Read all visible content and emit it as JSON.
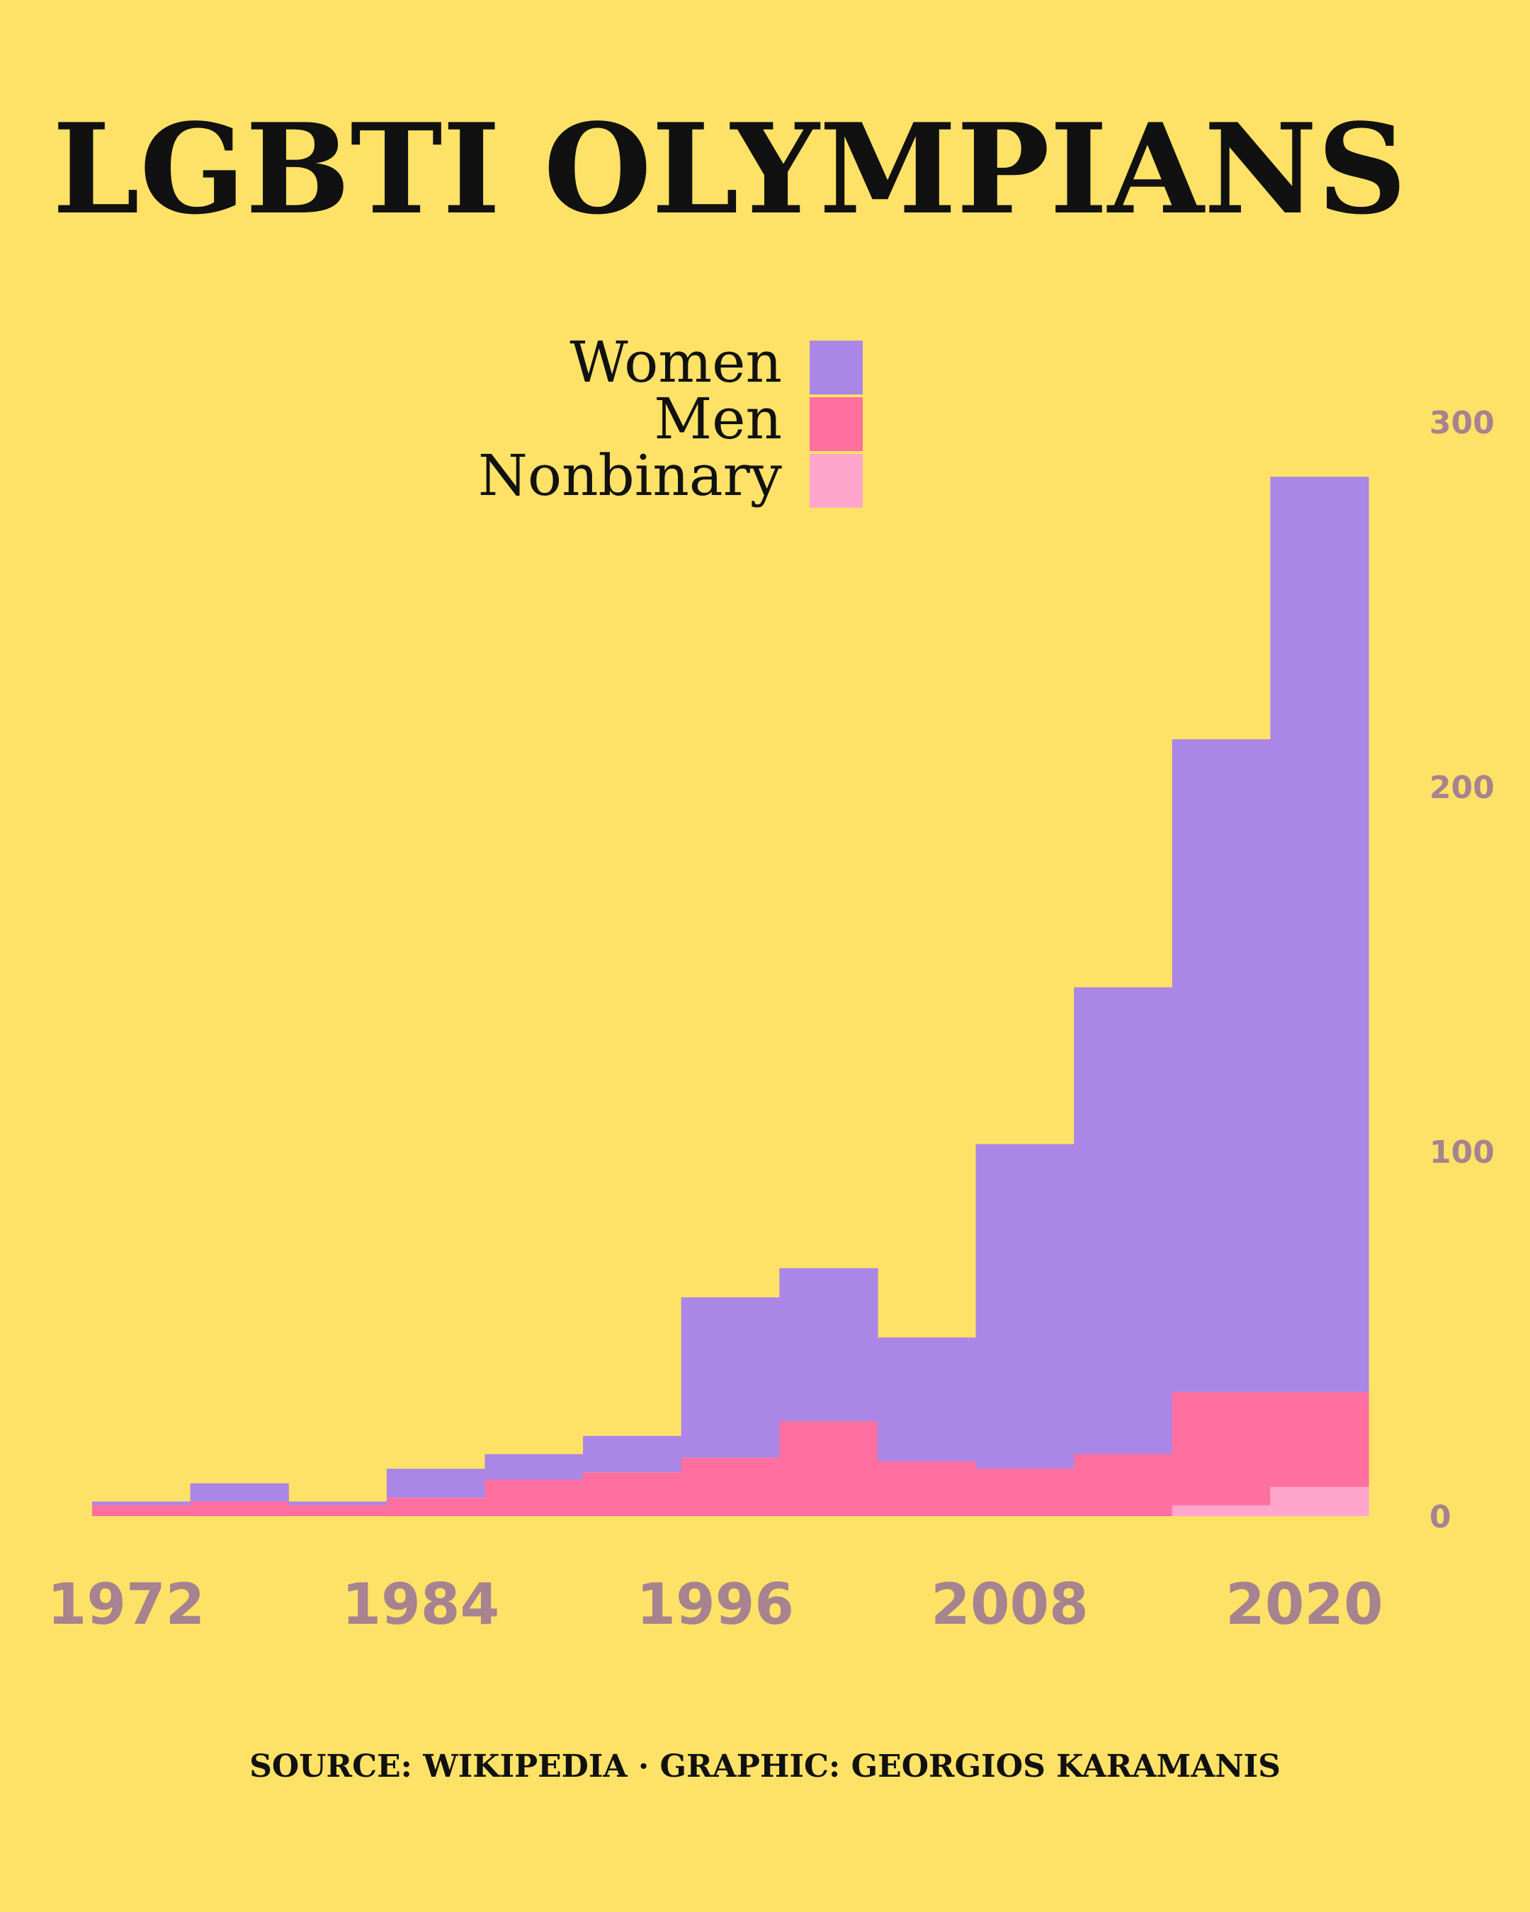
{
  "title": "LGBTI OLYMPIANS",
  "caption": "SOURCE: WIKIPEDIA · GRAPHIC: GEORGIOS KARAMANIS",
  "colors": {
    "background": "#FDE267",
    "women": "#AA86E6",
    "men": "#FF6F9F",
    "nonbinary": "#FFA6CC",
    "tick_text": "#A6838F",
    "text": "#111111"
  },
  "chart_data": {
    "type": "area",
    "stacked": true,
    "step": true,
    "title": "LGBTI OLYMPIANS",
    "x": [
      1972,
      1976,
      1980,
      1984,
      1988,
      1992,
      1996,
      2000,
      2004,
      2008,
      2012,
      2016,
      2020
    ],
    "series": [
      {
        "name": "Women",
        "color": "#AA86E6",
        "values": [
          1,
          5,
          1,
          8,
          7,
          10,
          44,
          42,
          34,
          89,
          128,
          179,
          251
        ]
      },
      {
        "name": "Men",
        "color": "#FF6F9F",
        "values": [
          3,
          4,
          3,
          5,
          10,
          12,
          16,
          26,
          15,
          13,
          17,
          31,
          26
        ]
      },
      {
        "name": "Nonbinary",
        "color": "#FFA6CC",
        "values": [
          0,
          0,
          0,
          0,
          0,
          0,
          0,
          0,
          0,
          0,
          0,
          3,
          8
        ]
      }
    ],
    "legend": [
      "Women",
      "Men",
      "Nonbinary"
    ],
    "legend_position": "top-center",
    "y_ticks": [
      "0",
      "100",
      "200",
      "300"
    ],
    "x_tick_labels": [
      "1972",
      "1984",
      "1996",
      "2008",
      "2020"
    ],
    "ylim": [
      0,
      300
    ],
    "y_axis_position": "right",
    "grid": false
  }
}
